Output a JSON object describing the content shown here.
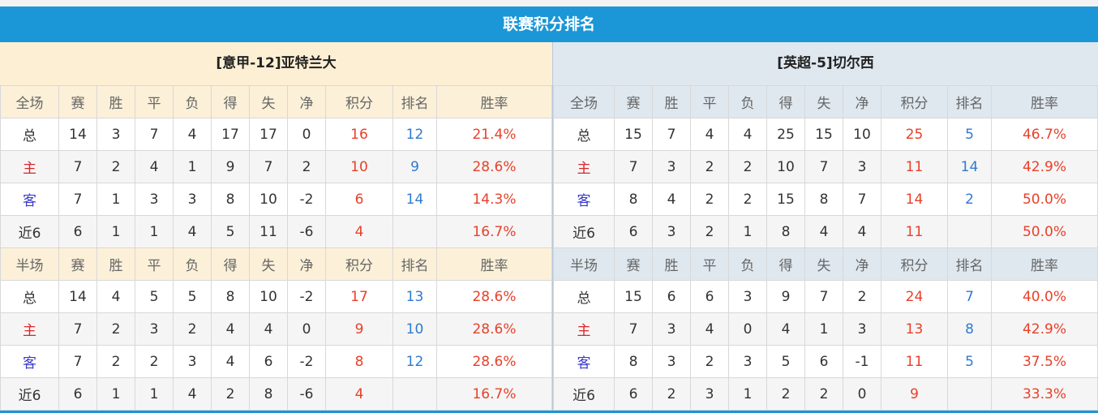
{
  "title": "联赛积分排名",
  "headers_full": [
    "全场",
    "赛",
    "胜",
    "平",
    "负",
    "得",
    "失",
    "净",
    "积分",
    "排名",
    "胜率"
  ],
  "headers_half": [
    "半场",
    "赛",
    "胜",
    "平",
    "负",
    "得",
    "失",
    "净",
    "积分",
    "排名",
    "胜率"
  ],
  "left": {
    "team": "[意甲-12]亚特兰大",
    "full": [
      [
        "总",
        "14",
        "3",
        "7",
        "4",
        "17",
        "17",
        "0",
        "16",
        "12",
        "21.4%"
      ],
      [
        "主",
        "7",
        "2",
        "4",
        "1",
        "9",
        "7",
        "2",
        "10",
        "9",
        "28.6%"
      ],
      [
        "客",
        "7",
        "1",
        "3",
        "3",
        "8",
        "10",
        "-2",
        "6",
        "14",
        "14.3%"
      ],
      [
        "近6",
        "6",
        "1",
        "1",
        "4",
        "5",
        "11",
        "-6",
        "4",
        "",
        "16.7%"
      ]
    ],
    "half": [
      [
        "总",
        "14",
        "4",
        "5",
        "5",
        "8",
        "10",
        "-2",
        "17",
        "13",
        "28.6%"
      ],
      [
        "主",
        "7",
        "2",
        "3",
        "2",
        "4",
        "4",
        "0",
        "9",
        "10",
        "28.6%"
      ],
      [
        "客",
        "7",
        "2",
        "2",
        "3",
        "4",
        "6",
        "-2",
        "8",
        "12",
        "28.6%"
      ],
      [
        "近6",
        "6",
        "1",
        "1",
        "4",
        "2",
        "8",
        "-6",
        "4",
        "",
        "16.7%"
      ]
    ]
  },
  "right": {
    "team": "[英超-5]切尔西",
    "full": [
      [
        "总",
        "15",
        "7",
        "4",
        "4",
        "25",
        "15",
        "10",
        "25",
        "5",
        "46.7%"
      ],
      [
        "主",
        "7",
        "3",
        "2",
        "2",
        "10",
        "7",
        "3",
        "11",
        "14",
        "42.9%"
      ],
      [
        "客",
        "8",
        "4",
        "2",
        "2",
        "15",
        "8",
        "7",
        "14",
        "2",
        "50.0%"
      ],
      [
        "近6",
        "6",
        "3",
        "2",
        "1",
        "8",
        "4",
        "4",
        "11",
        "",
        "50.0%"
      ]
    ],
    "half": [
      [
        "总",
        "15",
        "6",
        "6",
        "3",
        "9",
        "7",
        "2",
        "24",
        "7",
        "40.0%"
      ],
      [
        "主",
        "7",
        "3",
        "4",
        "0",
        "4",
        "1",
        "3",
        "13",
        "8",
        "42.9%"
      ],
      [
        "客",
        "8",
        "3",
        "2",
        "3",
        "5",
        "6",
        "-1",
        "11",
        "5",
        "37.5%"
      ],
      [
        "近6",
        "6",
        "2",
        "3",
        "1",
        "2",
        "2",
        "0",
        "9",
        "",
        "33.3%"
      ]
    ]
  },
  "colors": {
    "header": "#1b96d6",
    "points": "#e8402a",
    "rank": "#2f7ad0",
    "home": "#d9262b",
    "away": "#3a3acc"
  }
}
